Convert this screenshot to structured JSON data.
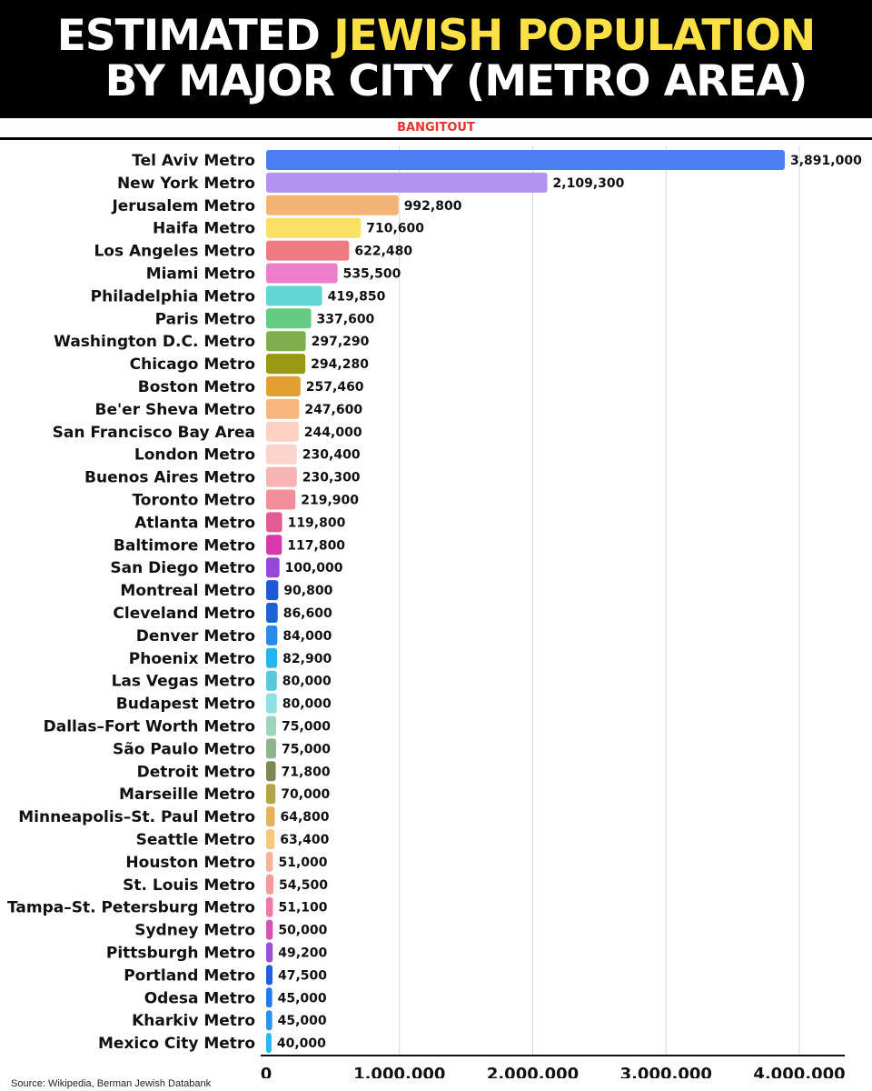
{
  "header": {
    "title_part1": "ESTIMATED ",
    "title_highlight": "JEWISH POPULATION",
    "title_line2": "BY MAJOR CITY (METRO AREA)",
    "highlight_color": "#fbe046"
  },
  "brand": "BANGITOUT",
  "source": "Source: Wikipedia, Berman Jewish Databank",
  "chart_data": {
    "type": "bar",
    "orientation": "horizontal",
    "title": "ESTIMATED JEWISH POPULATION BY MAJOR CITY (METRO AREA)",
    "xlabel": "",
    "ylabel": "",
    "xlim": [
      0,
      4000000
    ],
    "xticks": [
      0,
      1000000,
      2000000,
      3000000,
      4000000
    ],
    "xtick_labels": [
      "0",
      "1,000,000",
      "2,000,000",
      "3,000,000",
      "4,000,000"
    ],
    "grid": "vertical",
    "categories": [
      "Tel Aviv Metro",
      "New York Metro",
      "Jerusalem Metro",
      "Haifa Metro",
      "Los Angeles Metro",
      "Miami Metro",
      "Philadelphia Metro",
      "Paris Metro",
      "Washington D.C. Metro",
      "Chicago Metro",
      "Boston Metro",
      "Be'er Sheva Metro",
      "San Francisco Bay Area",
      "London Metro",
      "Buenos Aires Metro",
      "Toronto Metro",
      "Atlanta Metro",
      "Baltimore Metro",
      "San Diego Metro",
      "Montreal Metro",
      "Cleveland Metro",
      "Denver Metro",
      "Phoenix Metro",
      "Las Vegas Metro",
      "Budapest Metro",
      "Dallas–Fort Worth Metro",
      "São Paulo Metro",
      "Detroit Metro",
      "Marseille Metro",
      "Minneapolis–St. Paul Metro",
      "Seattle Metro",
      "Houston Metro",
      "St. Louis Metro",
      "Tampa–St. Petersburg Metro",
      "Sydney Metro",
      "Pittsburgh Metro",
      "Portland Metro",
      "Odesa Metro",
      "Kharkiv Metro",
      "Mexico City Metro"
    ],
    "values": [
      3891000,
      2109300,
      992800,
      710600,
      622480,
      535500,
      419850,
      337600,
      297290,
      294280,
      257460,
      247600,
      244000,
      230400,
      230300,
      219900,
      119800,
      117800,
      100000,
      90800,
      86600,
      84000,
      82900,
      80000,
      80000,
      75000,
      75000,
      71800,
      70000,
      64800,
      63400,
      51000,
      54500,
      51100,
      50000,
      49200,
      47500,
      45000,
      45000,
      40000
    ],
    "value_labels": [
      "3,891,000",
      "2,109,300",
      "992,800",
      "710,600",
      "622,480",
      "535,500",
      "419,850",
      "337,600",
      "297,290",
      "294,280",
      "257,460",
      "247,600",
      "244,000",
      "230,400",
      "230,300",
      "219,900",
      "119,800",
      "117,800",
      "100,000",
      "90,800",
      "86,600",
      "84,000",
      "82,900",
      "80,000",
      "80,000",
      "75,000",
      "75,000",
      "71,800",
      "70,000",
      "64,800",
      "63,400",
      "51,000",
      "54,500",
      "51,100",
      "50,000",
      "49,200",
      "47,500",
      "45,000",
      "45,000",
      "40,000"
    ],
    "colors": [
      "#4a7ef0",
      "#b393f2",
      "#f2b374",
      "#fbe066",
      "#ee7b82",
      "#ec7ecb",
      "#5fd6d4",
      "#65cb82",
      "#7eaf4c",
      "#9a9a12",
      "#e2a033",
      "#f8b67e",
      "#fbd1c1",
      "#fbd4cc",
      "#f6b5b3",
      "#f28d9a",
      "#e35b94",
      "#d43aac",
      "#9846d6",
      "#1f58d6",
      "#1f62d2",
      "#2b8ae8",
      "#25b6ee",
      "#5bc6dc",
      "#8fe1e1",
      "#9bd6bc",
      "#8eb48c",
      "#7b8a52",
      "#b3a34a",
      "#e3b25a",
      "#f8c87c",
      "#f8b49a",
      "#f59a9c",
      "#f07aa7",
      "#d255b3",
      "#9c4fd0",
      "#1f5fd9",
      "#2379e6",
      "#2b93ea",
      "#28b8ef"
    ]
  }
}
